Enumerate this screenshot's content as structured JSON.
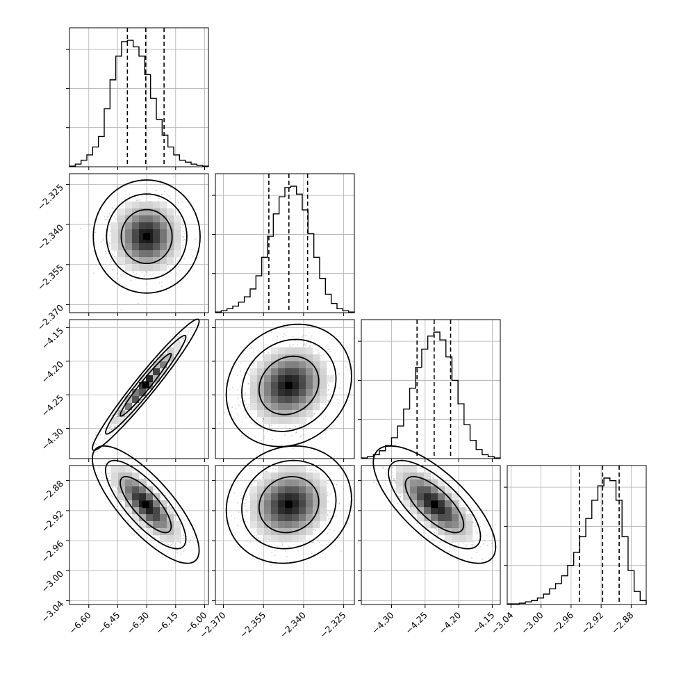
{
  "chart_data": {
    "type": "corner",
    "grid": true,
    "quantile_style": "dashed",
    "parameters": [
      {
        "index": 0,
        "range": [
          -6.7,
          -5.98
        ],
        "ticks": [
          -6.6,
          -6.45,
          -6.3,
          -6.15,
          -6.0
        ],
        "tick_labels": [
          "−6.60",
          "−6.45",
          "−6.30",
          "−6.15",
          "−6.00"
        ],
        "quantiles": [
          -6.4,
          -6.305,
          -6.21
        ],
        "histogram": [
          0.5,
          2,
          5,
          9,
          15,
          23,
          44,
          66,
          84,
          95,
          96,
          91,
          84,
          70,
          52,
          36,
          24,
          15,
          9,
          5,
          3.5,
          2,
          1,
          0.5
        ]
      },
      {
        "index": 1,
        "range": [
          -2.373,
          -2.321
        ],
        "ticks": [
          -2.37,
          -2.355,
          -2.34,
          -2.325
        ],
        "tick_labels": [
          "−2.370",
          "−2.355",
          "−2.340",
          "−2.325"
        ],
        "quantiles": [
          -2.353,
          -2.3455,
          -2.3385
        ],
        "histogram": [
          0.5,
          1.5,
          3,
          5,
          8,
          12,
          18,
          28,
          42,
          58,
          75,
          88,
          95,
          96,
          90,
          78,
          60,
          42,
          26,
          14,
          7,
          3,
          1.5,
          0.5
        ]
      },
      {
        "index": 2,
        "range": [
          -4.345,
          -4.138
        ],
        "ticks": [
          -4.3,
          -4.25,
          -4.2,
          -4.15
        ],
        "tick_labels": [
          "−4.30",
          "−4.25",
          "−4.20",
          "−4.15"
        ],
        "quantiles": [
          -4.262,
          -4.2365,
          -4.212
        ],
        "histogram": [
          0.5,
          1.5,
          3,
          6,
          10,
          16,
          25,
          38,
          54,
          70,
          84,
          94,
          97,
          91,
          78,
          60,
          42,
          26,
          14,
          7,
          3,
          1.5,
          0.5
        ]
      },
      {
        "index": 3,
        "range": [
          -3.045,
          -2.86
        ],
        "ticks": [
          -3.04,
          -3.0,
          -2.96,
          -2.92,
          -2.88
        ],
        "tick_labels": [
          "−3.04",
          "−3.00",
          "−2.96",
          "−2.92",
          "−2.88"
        ],
        "quantiles": [
          -2.949,
          -2.918,
          -2.896
        ],
        "histogram": [
          0.5,
          0.5,
          1,
          2,
          3,
          5,
          8,
          12,
          16,
          22,
          30,
          40,
          52,
          66,
          80,
          91,
          97,
          95,
          80,
          52,
          26,
          10,
          3
        ]
      }
    ],
    "pairs": [
      {
        "x": 0,
        "y": 1,
        "mean": [
          -6.3,
          -2.3445
        ],
        "sd": [
          0.085,
          0.0065
        ],
        "rho": 0.0
      },
      {
        "x": 0,
        "y": 2,
        "mean": [
          -6.305,
          -4.235
        ],
        "sd": [
          0.085,
          0.03
        ],
        "rho": 0.97
      },
      {
        "x": 1,
        "y": 2,
        "mean": [
          -2.3455,
          -4.236
        ],
        "sd": [
          0.0072,
          0.028
        ],
        "rho": 0.15
      },
      {
        "x": 0,
        "y": 3,
        "mean": [
          -6.305,
          -2.912
        ],
        "sd": [
          0.085,
          0.024
        ],
        "rho": -0.78
      },
      {
        "x": 1,
        "y": 3,
        "mean": [
          -2.3455,
          -2.912
        ],
        "sd": [
          0.0072,
          0.024
        ],
        "rho": 0.1
      },
      {
        "x": 2,
        "y": 3,
        "mean": [
          -4.236,
          -2.912
        ],
        "sd": [
          0.028,
          0.024
        ],
        "rho": -0.72
      }
    ]
  }
}
